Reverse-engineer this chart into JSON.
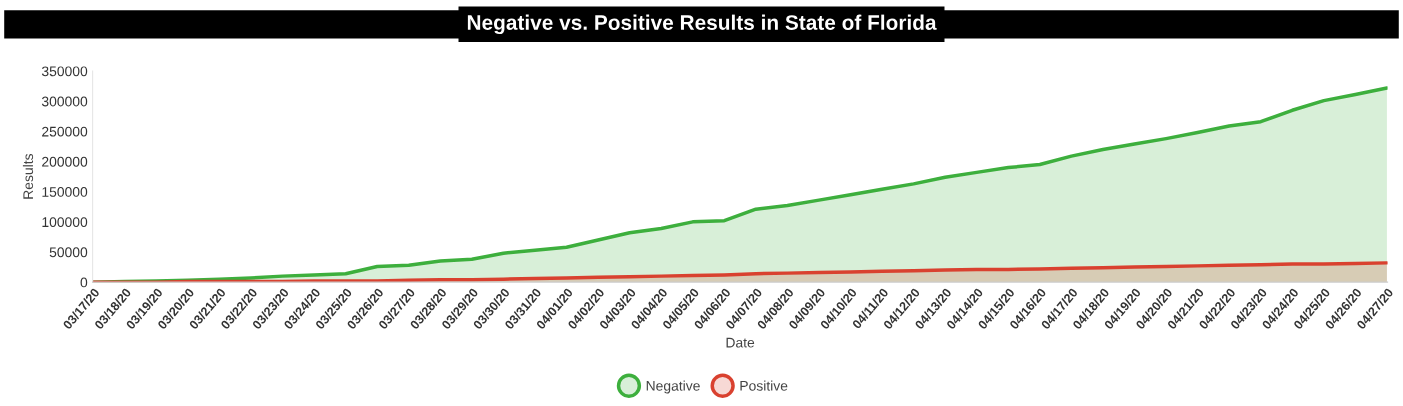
{
  "chart_data": {
    "type": "area",
    "title": "Negative vs. Positive Results in State of Florida",
    "xlabel": "Date",
    "ylabel": "Results",
    "categories": [
      "03/17/20",
      "03/18/20",
      "03/19/20",
      "03/20/20",
      "03/21/20",
      "03/22/20",
      "03/23/20",
      "03/24/20",
      "03/25/20",
      "03/26/20",
      "03/27/20",
      "03/28/20",
      "03/29/20",
      "03/30/20",
      "03/31/20",
      "04/01/20",
      "04/02/20",
      "04/03/20",
      "04/04/20",
      "04/05/20",
      "04/06/20",
      "04/07/20",
      "04/08/20",
      "04/09/20",
      "04/10/20",
      "04/11/20",
      "04/12/20",
      "04/13/20",
      "04/14/20",
      "04/15/20",
      "04/16/20",
      "04/17/20",
      "04/18/20",
      "04/19/20",
      "04/20/20",
      "04/21/20",
      "04/22/20",
      "04/23/20",
      "04/24/20",
      "04/25/20",
      "04/26/20",
      "04/27/20"
    ],
    "series": [
      {
        "name": "Negative",
        "color": "#3daf3d",
        "values": [
          0,
          1000,
          2000,
          3000,
          5000,
          7000,
          10000,
          12000,
          14000,
          26000,
          28000,
          35000,
          38000,
          48000,
          53000,
          58000,
          70000,
          82000,
          89000,
          100000,
          102000,
          121000,
          127000,
          136000,
          145000,
          154000,
          163000,
          174000,
          182000,
          190000,
          195000,
          209000,
          220000,
          229000,
          238000,
          248000,
          259000,
          266000,
          285000,
          301000,
          311000,
          322000
        ]
      },
      {
        "name": "Positive",
        "color": "#d9412f",
        "values": [
          0,
          0,
          0,
          1000,
          1000,
          1000,
          1000,
          2000,
          2000,
          2000,
          3000,
          4000,
          4000,
          5000,
          6000,
          7000,
          8000,
          9000,
          10000,
          11000,
          12000,
          14000,
          15000,
          16000,
          17000,
          18000,
          19000,
          20000,
          21000,
          21000,
          22000,
          23000,
          24000,
          25000,
          26000,
          27000,
          28000,
          29000,
          30000,
          30000,
          31000,
          32000
        ]
      }
    ],
    "ylim": [
      0,
      350000
    ],
    "yticks": [
      0,
      50000,
      100000,
      150000,
      200000,
      250000,
      300000,
      350000
    ],
    "grid": false,
    "legend": "bottom",
    "marker": "none",
    "line_style": "solid"
  }
}
